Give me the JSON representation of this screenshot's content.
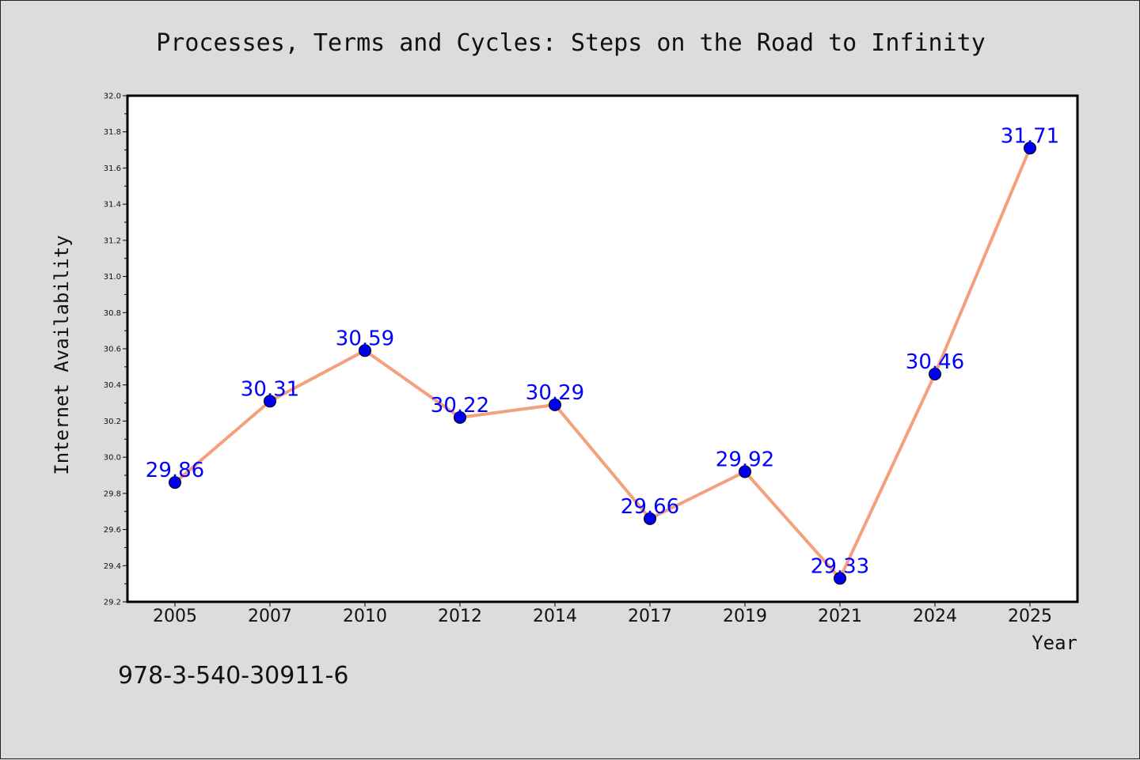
{
  "chart_data": {
    "type": "line",
    "title": "Processes, Terms and Cycles: Steps on the Road to Infinity",
    "xlabel": "Year",
    "ylabel": "Internet Availability",
    "categories": [
      "2005",
      "2007",
      "2010",
      "2012",
      "2014",
      "2017",
      "2019",
      "2021",
      "2024",
      "2025"
    ],
    "series": [
      {
        "values": [
          29.86,
          30.31,
          30.59,
          30.22,
          30.29,
          29.66,
          29.92,
          29.33,
          30.46,
          31.71
        ],
        "labels": [
          "29.86",
          "30.31",
          "30.59",
          "30.22",
          "30.29",
          "29.66",
          "29.92",
          "29.33",
          "30.46",
          "31.71"
        ],
        "line_color": "#f4a07c",
        "marker_color": "#0000ee"
      }
    ],
    "ylim": [
      29.2,
      32.0
    ],
    "yticks": [
      "29.2",
      "29.4",
      "29.6",
      "29.8",
      "30.0",
      "30.2",
      "30.4",
      "30.6",
      "30.8",
      "31.0",
      "31.2",
      "31.4",
      "31.6",
      "31.8",
      "32.0"
    ],
    "grid": false,
    "legend": "none",
    "label_color": "#0000ff",
    "background_color": "#dcdcdc",
    "plot_background_color": "#ffffff"
  },
  "footer": {
    "isbn": "978-3-540-30911-6"
  }
}
